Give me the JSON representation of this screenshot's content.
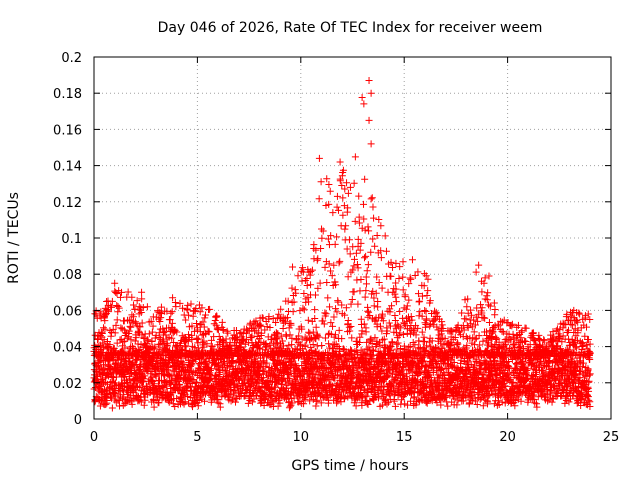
{
  "chart_data": {
    "type": "scatter",
    "title": "Day 046 of 2026, Rate Of TEC Index for receiver weem",
    "xlabel": "GPS time / hours",
    "ylabel": "ROTI / TECUs",
    "xlim": [
      0,
      25
    ],
    "ylim": [
      0,
      0.2
    ],
    "xticks": [
      0,
      5,
      10,
      15,
      20,
      25
    ],
    "yticks": [
      0,
      0.02,
      0.04,
      0.06,
      0.08,
      0.1,
      0.12,
      0.14,
      0.16,
      0.18,
      0.2
    ],
    "xtick_labels": [
      "0",
      "5",
      "10",
      "15",
      "20",
      "25"
    ],
    "ytick_labels": [
      "0",
      "0.02",
      "0.04",
      "0.06",
      "0.08",
      "0.1",
      "0.12",
      "0.14",
      "0.16",
      "0.18",
      "0.2"
    ],
    "grid": true,
    "marker": "+",
    "color": "#ff0000",
    "series": [
      {
        "name": "ROTI",
        "envelope_hours": [
          0,
          1,
          2,
          3,
          4,
          5,
          6,
          7,
          8,
          9,
          10,
          10.5,
          11,
          11.5,
          12,
          12.5,
          13,
          13.5,
          14,
          14.5,
          15,
          15.5,
          16,
          16.5,
          17,
          17.5,
          18,
          18.5,
          19,
          19.5,
          20,
          21,
          22,
          23,
          24
        ],
        "envelope_max": [
          0.058,
          0.075,
          0.071,
          0.06,
          0.067,
          0.063,
          0.06,
          0.05,
          0.056,
          0.06,
          0.084,
          0.082,
          0.144,
          0.125,
          0.142,
          0.13,
          0.187,
          0.12,
          0.105,
          0.086,
          0.088,
          0.08,
          0.085,
          0.06,
          0.05,
          0.05,
          0.068,
          0.085,
          0.08,
          0.06,
          0.055,
          0.05,
          0.048,
          0.06,
          0.058
        ],
        "typical_low": 0.01,
        "typical_high": 0.035,
        "isolated_points": [
          [
            0.1,
            0.058
          ],
          [
            1.0,
            0.075
          ],
          [
            2.3,
            0.07
          ],
          [
            3.8,
            0.067
          ],
          [
            5.1,
            0.063
          ],
          [
            9.6,
            0.084
          ],
          [
            10.9,
            0.144
          ],
          [
            11.9,
            0.142
          ],
          [
            12.4,
            0.128
          ],
          [
            13.3,
            0.187
          ],
          [
            13.4,
            0.18
          ],
          [
            13.3,
            0.165
          ],
          [
            13.4,
            0.152
          ],
          [
            14.6,
            0.086
          ],
          [
            15.4,
            0.088
          ],
          [
            18.6,
            0.085
          ],
          [
            19.1,
            0.079
          ],
          [
            23.2,
            0.06
          ],
          [
            23.9,
            0.058
          ]
        ]
      }
    ]
  }
}
